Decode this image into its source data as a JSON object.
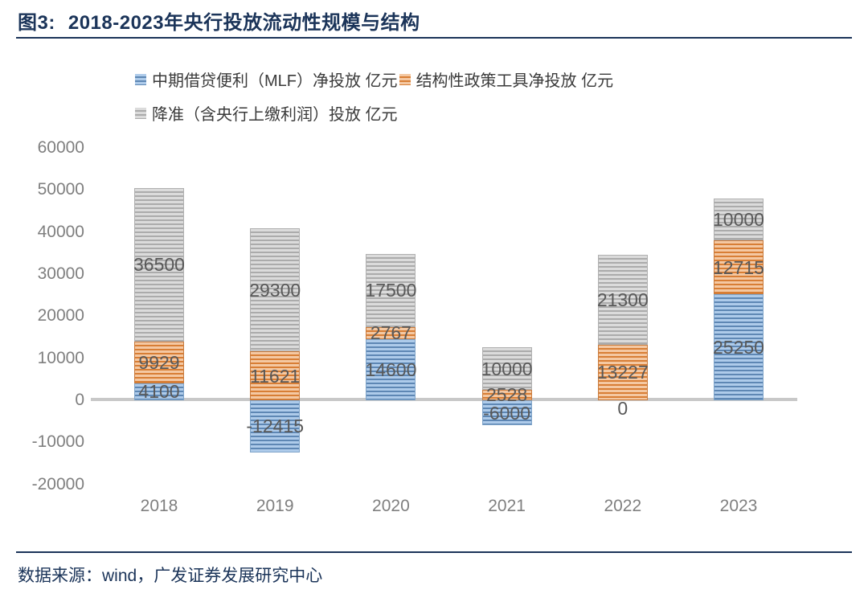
{
  "figure": {
    "title_prefix": "图3:",
    "title": "2018-2023年央行投放流动性规模与结构",
    "source": "数据来源：wind，广发证券发展研究中心"
  },
  "colors": {
    "navy": "#1B3459",
    "label": "#595959",
    "axis": "#7F7F7F",
    "zero_line": "#C8C8C8",
    "blue": {
      "light": "#AECBEA",
      "dark": "#5E87B4",
      "edge": "#7FA4C9"
    },
    "orange": {
      "light": "#F4C8A2",
      "dark": "#D87E35",
      "edge": "#C97B3D"
    },
    "gray": {
      "light": "#DBDBDB",
      "dark": "#ABABAB",
      "edge": "#B0B0B0"
    }
  },
  "chart_data": {
    "type": "bar",
    "stacked": true,
    "title": "2018-2023年央行投放流动性规模与结构",
    "categories": [
      "2018",
      "2019",
      "2020",
      "2021",
      "2022",
      "2023"
    ],
    "series": [
      {
        "name": "中期借贷便利（MLF）净投放 亿元",
        "color_key": "blue",
        "values": [
          4100,
          -12415,
          14600,
          -6000,
          0,
          25250
        ]
      },
      {
        "name": "结构性政策工具净投放 亿元",
        "color_key": "orange",
        "values": [
          9929,
          11621,
          2767,
          2528,
          13227,
          12715
        ]
      },
      {
        "name": "降准（含央行上缴利润）投放 亿元",
        "color_key": "gray",
        "values": [
          36500,
          29300,
          17500,
          10000,
          21300,
          10000
        ]
      }
    ],
    "ylim": [
      -20000,
      60000
    ],
    "ytick_step": 10000,
    "xlabel": "",
    "ylabel": "",
    "grid": false,
    "data_labels": true,
    "legend_position": "top-left",
    "legend_rows": [
      [
        0,
        1
      ],
      [
        2
      ]
    ]
  }
}
